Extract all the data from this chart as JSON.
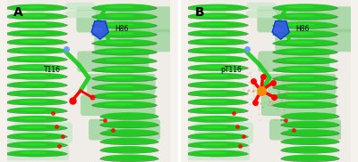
{
  "figsize": [
    4.0,
    1.82
  ],
  "dpi": 100,
  "bg_color": "#f5f2ee",
  "panel_labels": [
    "A",
    "B"
  ],
  "panel_label_fontsize": 10,
  "panel_label_weight": "bold",
  "panel_label_color": "black",
  "helix_green": "#22cc22",
  "helix_bright": "#33ee33",
  "helix_dark": "#119911",
  "helix_shadow": "#0a6e0a",
  "coil_light": "#c8e8c8",
  "coil_mid": "#90d090",
  "bg_cream": "#f0ede8",
  "label_T116": "T116",
  "label_pT116": "pT116",
  "label_H86": "H86",
  "label_fontsize": 5.5,
  "divider_color": "white"
}
